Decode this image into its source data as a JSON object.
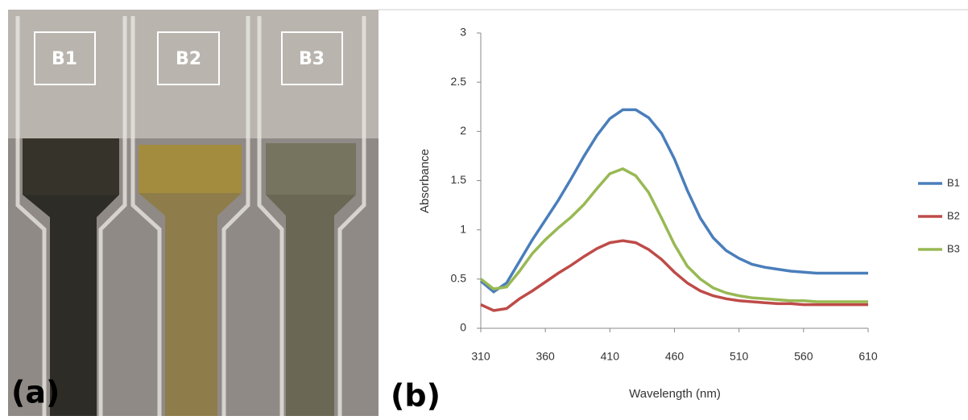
{
  "photo": {
    "labels": [
      "B1",
      "B2",
      "B3"
    ],
    "panel_label": "(a)"
  },
  "chart_data": {
    "type": "line",
    "panel_label": "(b)",
    "x_label": "Wavelength (nm)",
    "y_label": "Absorbance",
    "x": [
      310,
      320,
      330,
      340,
      350,
      360,
      370,
      380,
      390,
      400,
      410,
      420,
      430,
      440,
      450,
      460,
      470,
      480,
      490,
      500,
      510,
      520,
      530,
      540,
      550,
      560,
      570,
      580,
      590,
      600,
      610
    ],
    "series": [
      {
        "name": "B1",
        "color": "#4a7ebb",
        "values": [
          0.48,
          0.37,
          0.46,
          0.68,
          0.9,
          1.1,
          1.3,
          1.52,
          1.75,
          1.96,
          2.13,
          2.22,
          2.22,
          2.14,
          1.98,
          1.72,
          1.4,
          1.12,
          0.92,
          0.79,
          0.71,
          0.65,
          0.62,
          0.6,
          0.58,
          0.57,
          0.56,
          0.56,
          0.56,
          0.56,
          0.56
        ]
      },
      {
        "name": "B2",
        "color": "#be4b48",
        "values": [
          0.24,
          0.18,
          0.2,
          0.3,
          0.38,
          0.47,
          0.56,
          0.64,
          0.73,
          0.81,
          0.87,
          0.89,
          0.87,
          0.8,
          0.7,
          0.57,
          0.46,
          0.38,
          0.33,
          0.3,
          0.28,
          0.27,
          0.26,
          0.25,
          0.25,
          0.24,
          0.24,
          0.24,
          0.24,
          0.24,
          0.24
        ]
      },
      {
        "name": "B3",
        "color": "#98b954",
        "values": [
          0.5,
          0.4,
          0.42,
          0.58,
          0.76,
          0.9,
          1.02,
          1.13,
          1.26,
          1.42,
          1.57,
          1.62,
          1.55,
          1.38,
          1.12,
          0.85,
          0.63,
          0.5,
          0.41,
          0.36,
          0.33,
          0.31,
          0.3,
          0.29,
          0.28,
          0.28,
          0.27,
          0.27,
          0.27,
          0.27,
          0.27
        ]
      }
    ],
    "xlim": [
      310,
      610
    ],
    "xticks": [
      310,
      360,
      410,
      460,
      510,
      560,
      610
    ],
    "ylim": [
      0,
      3
    ],
    "yticks": [
      0,
      0.5,
      1,
      1.5,
      2,
      2.5,
      3
    ],
    "grid": false,
    "legend": "right"
  }
}
